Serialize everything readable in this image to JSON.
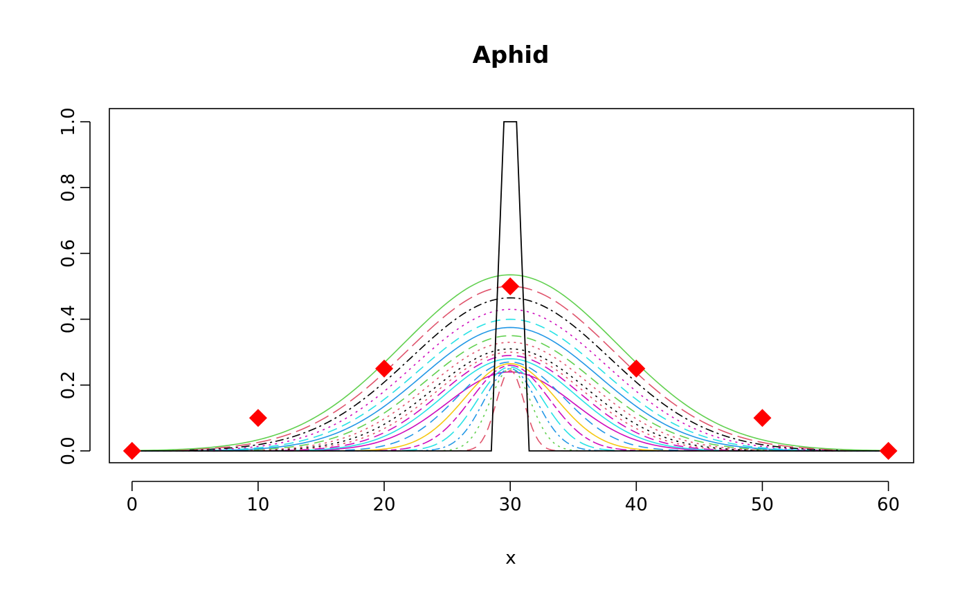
{
  "chart_data": {
    "type": "line",
    "title": "Aphid",
    "xlabel": "x",
    "ylabel": "",
    "xlim": [
      -1.8,
      62.0
    ],
    "ylim": [
      -0.036,
      1.04
    ],
    "xticks": [
      "0",
      "10",
      "20",
      "30",
      "40",
      "50",
      "60"
    ],
    "yticks": [
      "0.0",
      "0.2",
      "0.4",
      "0.6",
      "0.8",
      "1.0"
    ],
    "grid": false,
    "legend": "none",
    "initial_condition": {
      "x": [
        0,
        28.5,
        29.5,
        30.5,
        31.5,
        60
      ],
      "y": [
        0,
        0,
        1,
        1,
        0,
        0
      ],
      "color": "#000000"
    },
    "observed_points": {
      "x": [
        0,
        10,
        20,
        30,
        40,
        50,
        60
      ],
      "y": [
        0.0,
        0.1,
        0.25,
        0.5,
        0.25,
        0.1,
        0.0
      ],
      "color": "#FF0000",
      "marker": "diamond"
    },
    "series": [
      {
        "peak": 0.24,
        "sigma": 5.0,
        "color": "#CD0BBC",
        "dash": "solid"
      },
      {
        "peak": 0.245,
        "sigma": 1.1,
        "color": "#DF536B",
        "dash": "dashed"
      },
      {
        "peak": 0.25,
        "sigma": 1.6,
        "color": "#61D04F",
        "dash": "dotted"
      },
      {
        "peak": 0.25,
        "sigma": 2.1,
        "color": "#2297E6",
        "dash": "dotdash"
      },
      {
        "peak": 0.255,
        "sigma": 2.6,
        "color": "#28E2E5",
        "dash": "longdash"
      },
      {
        "peak": 0.26,
        "sigma": 3.1,
        "color": "#CD0BBC",
        "dash": "twodash"
      },
      {
        "peak": 0.265,
        "sigma": 3.6,
        "color": "#F5C710",
        "dash": "solid"
      },
      {
        "peak": 0.27,
        "sigma": 4.2,
        "color": "#2297E6",
        "dash": "dashed"
      },
      {
        "peak": 0.28,
        "sigma": 5.2,
        "color": "#28E2E5",
        "dash": "solid"
      },
      {
        "peak": 0.29,
        "sigma": 5.5,
        "color": "#CD0BBC",
        "dash": "dashed"
      },
      {
        "peak": 0.3,
        "sigma": 5.8,
        "color": "#DF536B",
        "dash": "dotted"
      },
      {
        "peak": 0.31,
        "sigma": 6.1,
        "color": "#000000",
        "dash": "dotted"
      },
      {
        "peak": 0.33,
        "sigma": 6.4,
        "color": "#DF536B",
        "dash": "dotted"
      },
      {
        "peak": 0.35,
        "sigma": 6.7,
        "color": "#61D04F",
        "dash": "dashed"
      },
      {
        "peak": 0.375,
        "sigma": 7.0,
        "color": "#2297E6",
        "dash": "solid"
      },
      {
        "peak": 0.4,
        "sigma": 7.3,
        "color": "#28E2E5",
        "dash": "dashed"
      },
      {
        "peak": 0.43,
        "sigma": 7.6,
        "color": "#CD0BBC",
        "dash": "dotted"
      },
      {
        "peak": 0.465,
        "sigma": 7.9,
        "color": "#000000",
        "dash": "dotdash"
      },
      {
        "peak": 0.5,
        "sigma": 8.2,
        "color": "#DF536B",
        "dash": "longdash"
      },
      {
        "peak": 0.535,
        "sigma": 8.5,
        "color": "#61D04F",
        "dash": "solid"
      }
    ]
  }
}
